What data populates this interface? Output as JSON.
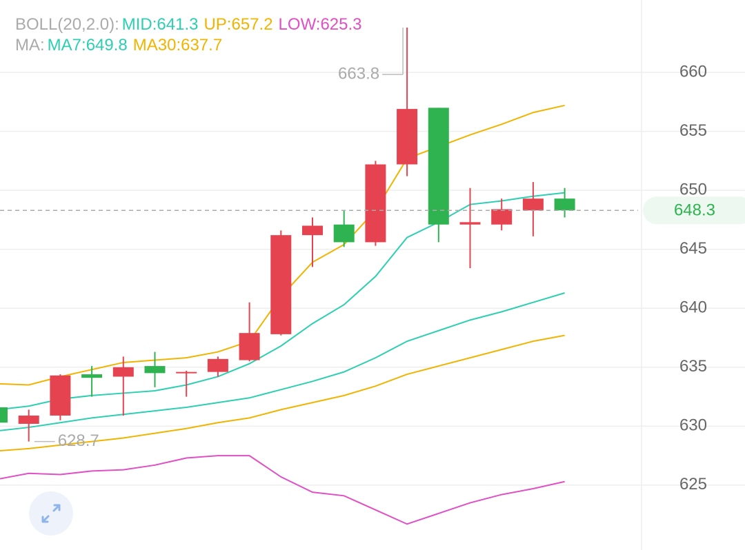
{
  "chart_data": {
    "type": "candlestick",
    "categories": [
      null,
      null,
      null,
      null,
      null,
      null,
      null,
      null,
      null,
      null,
      null,
      null,
      null,
      null,
      null,
      null,
      null,
      null,
      null
    ],
    "ohlc": {
      "open": [
        631.6,
        630.2,
        630.9,
        634.4,
        634.2,
        635.1,
        634.5,
        634.6,
        635.6,
        637.8,
        646.2,
        647.1,
        645.6,
        652.2,
        657.0,
        647.1,
        647.1,
        648.3,
        649.3
      ],
      "high": [
        631.6,
        631.4,
        634.4,
        635.1,
        635.9,
        636.3,
        634.7,
        635.9,
        640.5,
        646.6,
        647.7,
        648.3,
        652.5,
        663.8,
        657.0,
        650.2,
        649.3,
        650.7,
        650.2
      ],
      "low": [
        630.3,
        628.7,
        630.5,
        632.5,
        630.9,
        633.3,
        632.5,
        634.2,
        635.5,
        637.7,
        643.5,
        645.2,
        645.3,
        651.2,
        645.6,
        643.4,
        646.6,
        646.1,
        647.7
      ],
      "close": [
        630.3,
        630.9,
        634.3,
        634.1,
        635.0,
        634.5,
        634.6,
        635.7,
        637.9,
        646.2,
        647.0,
        645.6,
        652.2,
        656.9,
        647.1,
        647.3,
        648.4,
        649.3,
        648.3
      ]
    },
    "up_color": "#e5434f",
    "down_color": "#2fb350",
    "overlays": [
      {
        "title": "BOLL(20,2.0):",
        "series": [
          {
            "name": "MID:641.3",
            "color": "#2ccfb0",
            "values": [
              629.6,
              629.9,
              630.3,
              630.7,
              631.0,
              631.3,
              631.6,
              632.0,
              632.4,
              633.1,
              633.8,
              634.6,
              635.8,
              637.2,
              638.1,
              639.0,
              639.7,
              640.5,
              641.3
            ]
          },
          {
            "name": "UP:657.2",
            "color": "#f0b400",
            "values": [
              633.6,
              633.5,
              634.2,
              634.8,
              635.4,
              635.6,
              635.8,
              636.3,
              637.2,
              641.0,
              643.9,
              645.4,
              648.3,
              652.7,
              653.7,
              654.7,
              655.6,
              656.6,
              657.2
            ]
          },
          {
            "name": "LOW:625.3",
            "color": "#e04fc4",
            "values": [
              625.5,
              626.0,
              625.9,
              626.2,
              626.3,
              626.7,
              627.3,
              627.5,
              627.5,
              625.7,
              624.4,
              624.1,
              622.9,
              621.7,
              622.6,
              623.5,
              624.2,
              624.7,
              625.3
            ]
          }
        ]
      },
      {
        "title": "MA:",
        "series": [
          {
            "name": "MA7:649.8",
            "color": "#2ccfb0",
            "values": [
              631.4,
              631.7,
              632.3,
              632.6,
              632.8,
              633.0,
              633.5,
              634.2,
              635.3,
              636.8,
              638.7,
              640.3,
              642.7,
              646.0,
              647.3,
              648.8,
              649.1,
              649.5,
              649.8
            ]
          },
          {
            "name": "MA30:637.7",
            "color": "#f0b400",
            "values": [
              627.9,
              628.1,
              628.4,
              628.7,
              629.0,
              629.4,
              629.8,
              630.3,
              630.7,
              631.4,
              632.0,
              632.6,
              633.4,
              634.4,
              635.1,
              635.8,
              636.5,
              637.2,
              637.7
            ]
          }
        ]
      }
    ],
    "ylim": [
      619.5,
      666.14
    ],
    "yticks": [
      625,
      630,
      635,
      640,
      645,
      650,
      655,
      660
    ],
    "grid": true
  }
}
